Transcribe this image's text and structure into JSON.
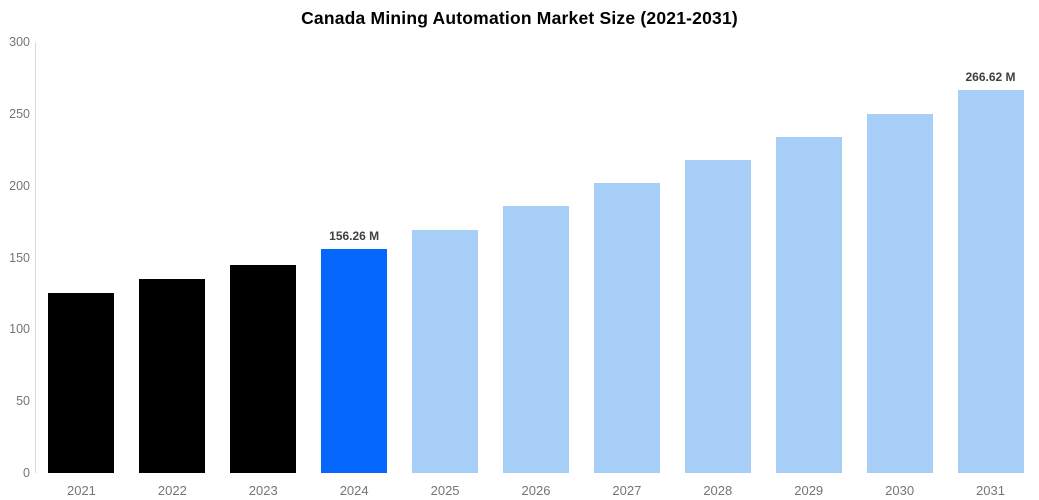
{
  "title": "Canada Mining Automation Market Size (2021-2031)",
  "chart_data": {
    "type": "bar",
    "title": "Canada Mining Automation Market Size (2021-2031)",
    "xlabel": "",
    "ylabel": "",
    "categories": [
      "2021",
      "2022",
      "2023",
      "2024",
      "2025",
      "2026",
      "2027",
      "2028",
      "2029",
      "2030",
      "2031"
    ],
    "values": [
      125,
      135,
      145,
      156.26,
      169,
      186,
      202,
      218,
      234,
      250,
      266.62
    ],
    "data_labels": [
      null,
      null,
      null,
      "156.26 M",
      null,
      null,
      null,
      null,
      null,
      null,
      "266.62 M"
    ],
    "bar_groups": [
      "historical",
      "historical",
      "historical",
      "current",
      "forecast",
      "forecast",
      "forecast",
      "forecast",
      "forecast",
      "forecast",
      "forecast"
    ],
    "colors": {
      "historical": "#000000",
      "current": "#0667FE",
      "forecast": "#A6CEF7"
    },
    "axis_line_color": "#d9d9d9",
    "ylim": [
      0,
      300
    ],
    "yticks": [
      0,
      50,
      100,
      150,
      200,
      250,
      300
    ],
    "grid": false,
    "legend": false
  }
}
